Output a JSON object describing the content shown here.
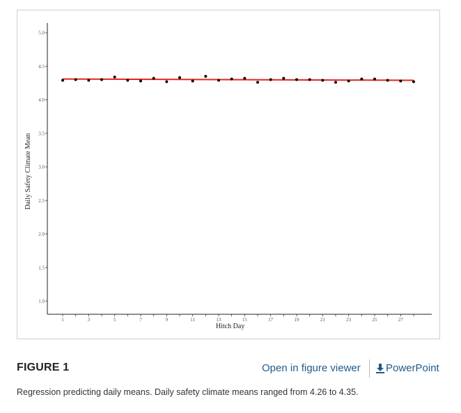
{
  "figure": {
    "label": "FIGURE 1",
    "open_viewer_label": "Open in figure viewer",
    "powerpoint_label": "PowerPoint",
    "caption": "Regression predicting daily means. Daily safety climate means ranged from 4.26 to 4.35."
  },
  "chart_data": {
    "type": "scatter",
    "xlabel": "Hitch Day",
    "ylabel": "Daily Safety Climate Mean",
    "xlim": [
      1,
      28
    ],
    "ylim": [
      1.0,
      5.0
    ],
    "x_ticks": [
      1,
      3,
      5,
      7,
      9,
      11,
      13,
      15,
      17,
      19,
      21,
      23,
      25,
      27
    ],
    "y_ticks": [
      "1.0",
      "1.5",
      "2.0",
      "2.5",
      "3.0",
      "3.5",
      "4.0",
      "4.5",
      "5.0"
    ],
    "grid": false,
    "colors": {
      "points": "#000000",
      "regression_line": "#e8231d"
    },
    "series": [
      {
        "x": [
          1,
          2,
          3,
          4,
          5,
          6,
          7,
          8,
          9,
          10,
          11,
          12,
          13,
          14,
          15,
          16,
          17,
          18,
          19,
          20,
          21,
          22,
          23,
          24,
          25,
          26,
          27,
          28
        ],
        "values": [
          4.29,
          4.3,
          4.29,
          4.3,
          4.34,
          4.29,
          4.28,
          4.32,
          4.27,
          4.33,
          4.28,
          4.35,
          4.29,
          4.31,
          4.32,
          4.26,
          4.3,
          4.32,
          4.3,
          4.3,
          4.29,
          4.26,
          4.28,
          4.31,
          4.31,
          4.29,
          4.28,
          4.27
        ]
      }
    ],
    "regression": {
      "start": [
        1,
        4.31
      ],
      "end": [
        28,
        4.29
      ]
    }
  }
}
